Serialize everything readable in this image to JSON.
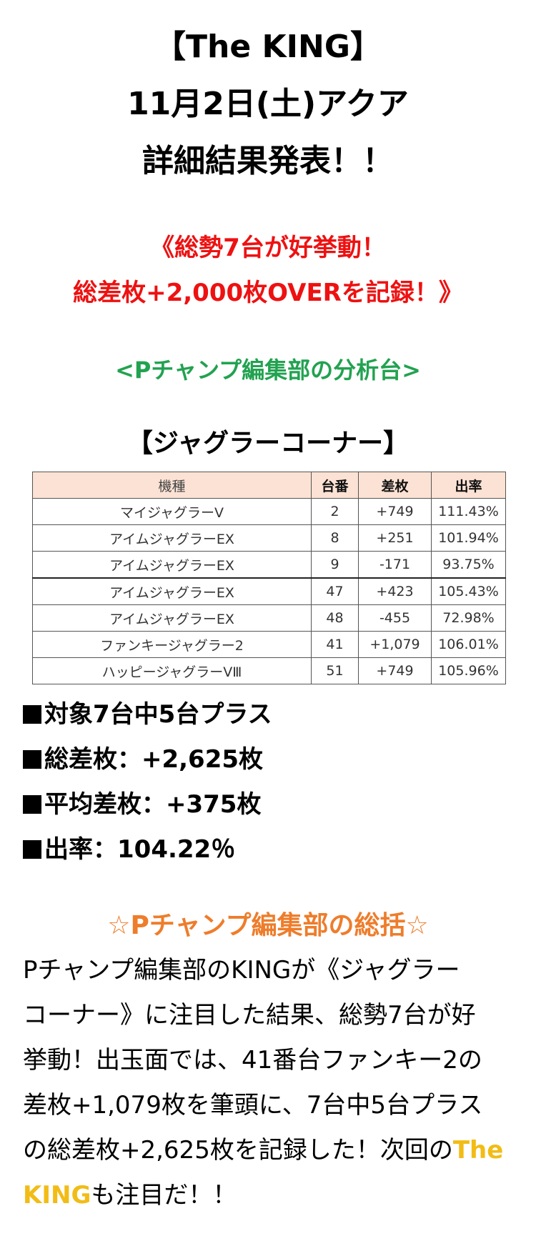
{
  "title": {
    "line1": "【The KING】",
    "line2": "11月2日(土)アクア",
    "line3": "詳細結果発表！！"
  },
  "headline": {
    "line1": "《総勢7台が好挙動！",
    "line2": "総差枚+2,000枚OVERを記録！》"
  },
  "analysis_heading": "<Pチャンプ編集部の分析台>",
  "corner_heading": "【ジャグラーコーナー】",
  "table": {
    "headers": [
      "機種",
      "台番",
      "差枚",
      "出率"
    ],
    "rows": [
      {
        "model": "マイジャグラーV",
        "machine_no": "2",
        "diff": "+749",
        "rate": "111.43%"
      },
      {
        "model": "アイムジャグラーEX",
        "machine_no": "8",
        "diff": "+251",
        "rate": "101.94%"
      },
      {
        "model": "アイムジャグラーEX",
        "machine_no": "9",
        "diff": "-171",
        "rate": "93.75%"
      },
      {
        "model": "アイムジャグラーEX",
        "machine_no": "47",
        "diff": "+423",
        "rate": "105.43%"
      },
      {
        "model": "アイムジャグラーEX",
        "machine_no": "48",
        "diff": "-455",
        "rate": "72.98%"
      },
      {
        "model": "ファンキージャグラー2",
        "machine_no": "41",
        "diff": "+1,079",
        "rate": "106.01%"
      },
      {
        "model": "ハッピージャグラーⅤⅢ",
        "machine_no": "51",
        "diff": "+749",
        "rate": "105.96%"
      }
    ]
  },
  "summary": [
    "対象7台中5台プラス",
    "総差枚：+2,625枚",
    "平均差枚：+375枚",
    "出率：104.22％"
  ],
  "summary_heading": "☆Pチャンプ編集部の総括☆",
  "body": {
    "line1": "Pチャンプ編集部のKINGが《ジャグラー",
    "line2": "コーナー》に注目した結果、総勢7台が好",
    "line3": "挙動！出玉面では、41番台ファンキー2の",
    "line4": "差枚+1,079枚を筆頭に、7台中5台プラス",
    "line5_pre": "の総差枚+2,625枚を記録した！次回の",
    "line5_king": "The",
    "line6_king": "KING",
    "line6_post": "も注目だ！！"
  },
  "colors": {
    "headline": "#ee1111",
    "analysis_heading": "#22a250",
    "summary_heading": "#ee7d2b",
    "king_highlight": "#f2bc16",
    "table_header_bg": "#fbe2d4"
  },
  "icons": {
    "summary_bullet": "black-square-icon"
  }
}
